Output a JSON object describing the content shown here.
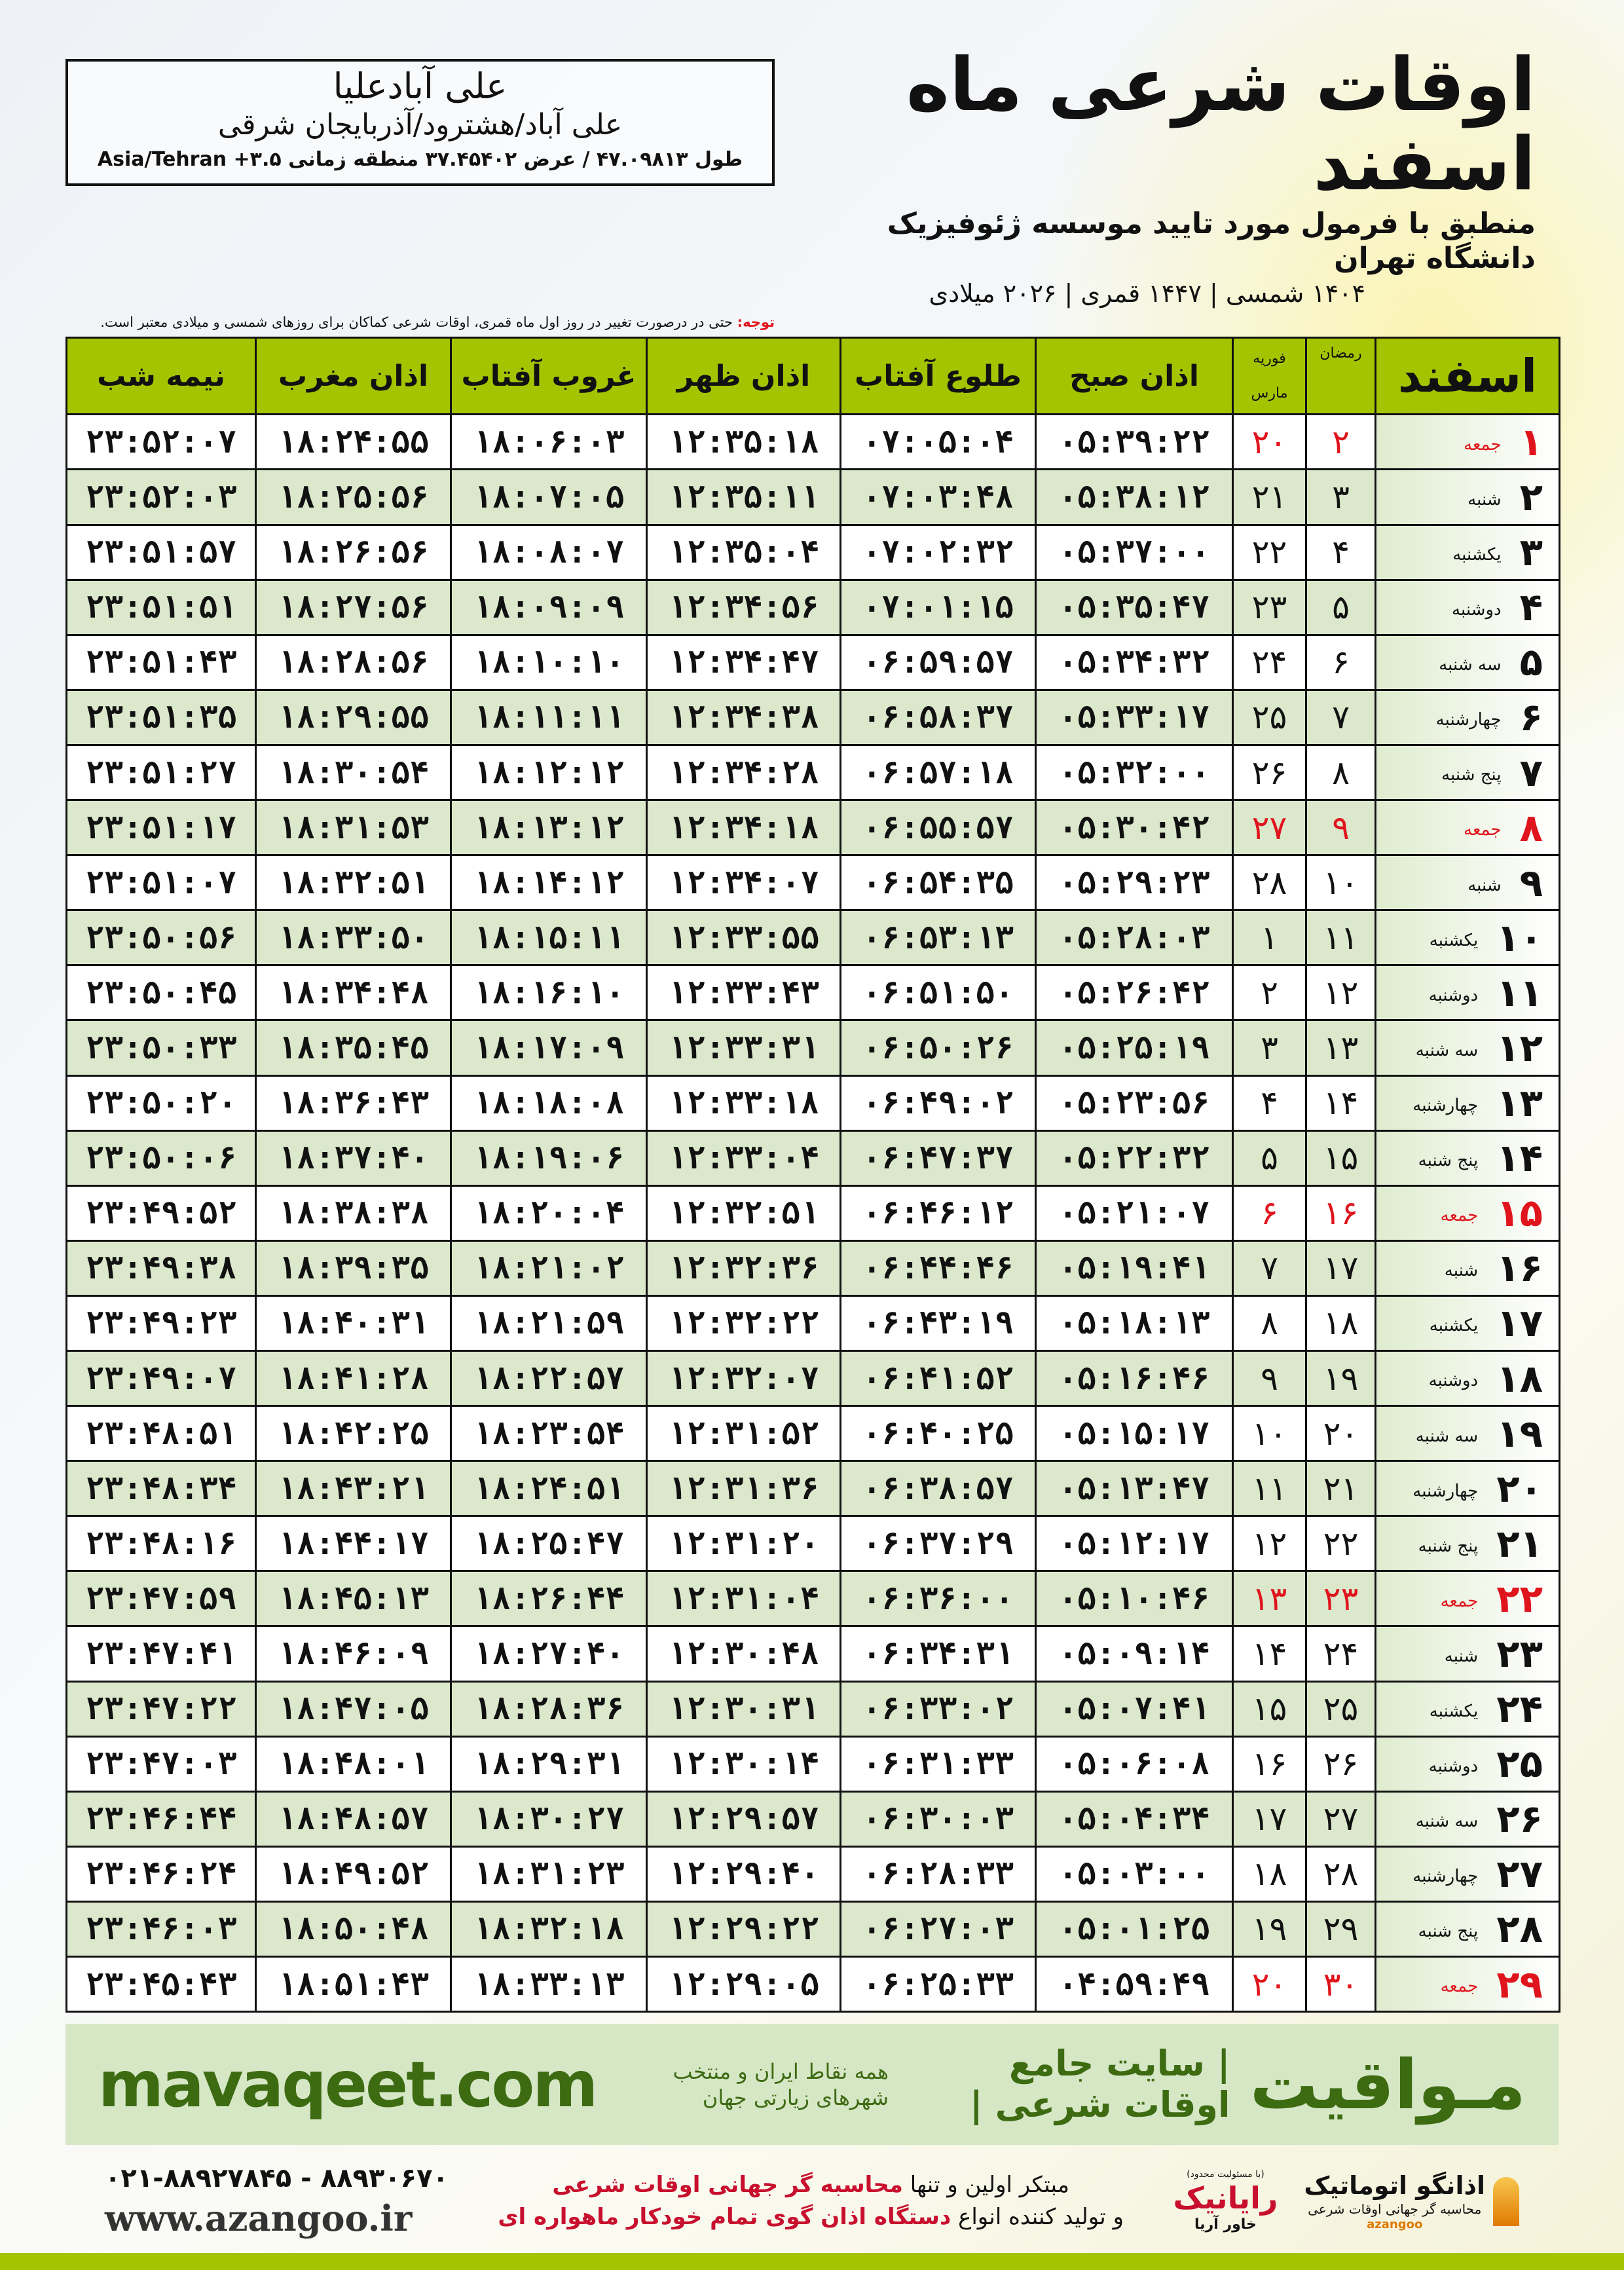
{
  "header": {
    "title": "اوقات شرعی ماه اسفند",
    "subtitle": "منطبق با فرمول مورد تایید موسسه ژئوفیزیک دانشگاه تهران",
    "dates": "۱۴۰۴ شمسی | ۱۴۴۷ قمری | ۲۰۲۶ میلادی"
  },
  "location": {
    "name": "علی آبادعلیا",
    "path": "علی آباد/هشترود/آذربایجان شرقی",
    "coords": "طول ۴۷.۰۹۸۱۳ / عرض ۳۷.۴۵۴۰۲ منطقه زمانی ۳.۵+ Asia/Tehran"
  },
  "note": {
    "label": "توجه:",
    "text": " حتی در درصورت تغییر در روز اول ماه قمری، اوقات شرعی کماکان برای روزهای شمسی و میلادی معتبر است."
  },
  "colors": {
    "header_green": "#a5c400",
    "row_alt": "#dbe8cc",
    "friday_red": "#e0141c",
    "brand_green": "#3d6b12"
  },
  "table": {
    "headers": {
      "month": "اسفند",
      "ramadan": "رمضان",
      "feb": "فوریه",
      "march": "مارس",
      "fajr": "اذان صبح",
      "sunrise": "طلوع آفتاب",
      "dhuhr": "اذان ظهر",
      "sunset": "غروب آفتاب",
      "maghrib": "اذان مغرب",
      "midnight": "نیمه شب"
    },
    "rows": [
      [
        "۱",
        "جمعه",
        "۲",
        "۲۰",
        "۰۵:۳۹:۲۲",
        "۰۷:۰۵:۰۴",
        "۱۲:۳۵:۱۸",
        "۱۸:۰۶:۰۳",
        "۱۸:۲۴:۵۵",
        "۲۳:۵۲:۰۷"
      ],
      [
        "۲",
        "شنبه",
        "۳",
        "۲۱",
        "۰۵:۳۸:۱۲",
        "۰۷:۰۳:۴۸",
        "۱۲:۳۵:۱۱",
        "۱۸:۰۷:۰۵",
        "۱۸:۲۵:۵۶",
        "۲۳:۵۲:۰۳"
      ],
      [
        "۳",
        "یکشنبه",
        "۴",
        "۲۲",
        "۰۵:۳۷:۰۰",
        "۰۷:۰۲:۳۲",
        "۱۲:۳۵:۰۴",
        "۱۸:۰۸:۰۷",
        "۱۸:۲۶:۵۶",
        "۲۳:۵۱:۵۷"
      ],
      [
        "۴",
        "دوشنبه",
        "۵",
        "۲۳",
        "۰۵:۳۵:۴۷",
        "۰۷:۰۱:۱۵",
        "۱۲:۳۴:۵۶",
        "۱۸:۰۹:۰۹",
        "۱۸:۲۷:۵۶",
        "۲۳:۵۱:۵۱"
      ],
      [
        "۵",
        "سه شنبه",
        "۶",
        "۲۴",
        "۰۵:۳۴:۳۲",
        "۰۶:۵۹:۵۷",
        "۱۲:۳۴:۴۷",
        "۱۸:۱۰:۱۰",
        "۱۸:۲۸:۵۶",
        "۲۳:۵۱:۴۳"
      ],
      [
        "۶",
        "چهارشنبه",
        "۷",
        "۲۵",
        "۰۵:۳۳:۱۷",
        "۰۶:۵۸:۳۷",
        "۱۲:۳۴:۳۸",
        "۱۸:۱۱:۱۱",
        "۱۸:۲۹:۵۵",
        "۲۳:۵۱:۳۵"
      ],
      [
        "۷",
        "پنج شنبه",
        "۸",
        "۲۶",
        "۰۵:۳۲:۰۰",
        "۰۶:۵۷:۱۸",
        "۱۲:۳۴:۲۸",
        "۱۸:۱۲:۱۲",
        "۱۸:۳۰:۵۴",
        "۲۳:۵۱:۲۷"
      ],
      [
        "۸",
        "جمعه",
        "۹",
        "۲۷",
        "۰۵:۳۰:۴۲",
        "۰۶:۵۵:۵۷",
        "۱۲:۳۴:۱۸",
        "۱۸:۱۳:۱۲",
        "۱۸:۳۱:۵۳",
        "۲۳:۵۱:۱۷"
      ],
      [
        "۹",
        "شنبه",
        "۱۰",
        "۲۸",
        "۰۵:۲۹:۲۳",
        "۰۶:۵۴:۳۵",
        "۱۲:۳۴:۰۷",
        "۱۸:۱۴:۱۲",
        "۱۸:۳۲:۵۱",
        "۲۳:۵۱:۰۷"
      ],
      [
        "۱۰",
        "یکشنبه",
        "۱۱",
        "۱",
        "۰۵:۲۸:۰۳",
        "۰۶:۵۳:۱۳",
        "۱۲:۳۳:۵۵",
        "۱۸:۱۵:۱۱",
        "۱۸:۳۳:۵۰",
        "۲۳:۵۰:۵۶"
      ],
      [
        "۱۱",
        "دوشنبه",
        "۱۲",
        "۲",
        "۰۵:۲۶:۴۲",
        "۰۶:۵۱:۵۰",
        "۱۲:۳۳:۴۳",
        "۱۸:۱۶:۱۰",
        "۱۸:۳۴:۴۸",
        "۲۳:۵۰:۴۵"
      ],
      [
        "۱۲",
        "سه شنبه",
        "۱۳",
        "۳",
        "۰۵:۲۵:۱۹",
        "۰۶:۵۰:۲۶",
        "۱۲:۳۳:۳۱",
        "۱۸:۱۷:۰۹",
        "۱۸:۳۵:۴۵",
        "۲۳:۵۰:۳۳"
      ],
      [
        "۱۳",
        "چهارشنبه",
        "۱۴",
        "۴",
        "۰۵:۲۳:۵۶",
        "۰۶:۴۹:۰۲",
        "۱۲:۳۳:۱۸",
        "۱۸:۱۸:۰۸",
        "۱۸:۳۶:۴۳",
        "۲۳:۵۰:۲۰"
      ],
      [
        "۱۴",
        "پنج شنبه",
        "۱۵",
        "۵",
        "۰۵:۲۲:۳۲",
        "۰۶:۴۷:۳۷",
        "۱۲:۳۳:۰۴",
        "۱۸:۱۹:۰۶",
        "۱۸:۳۷:۴۰",
        "۲۳:۵۰:۰۶"
      ],
      [
        "۱۵",
        "جمعه",
        "۱۶",
        "۶",
        "۰۵:۲۱:۰۷",
        "۰۶:۴۶:۱۲",
        "۱۲:۳۲:۵۱",
        "۱۸:۲۰:۰۴",
        "۱۸:۳۸:۳۸",
        "۲۳:۴۹:۵۲"
      ],
      [
        "۱۶",
        "شنبه",
        "۱۷",
        "۷",
        "۰۵:۱۹:۴۱",
        "۰۶:۴۴:۴۶",
        "۱۲:۳۲:۳۶",
        "۱۸:۲۱:۰۲",
        "۱۸:۳۹:۳۵",
        "۲۳:۴۹:۳۸"
      ],
      [
        "۱۷",
        "یکشنبه",
        "۱۸",
        "۸",
        "۰۵:۱۸:۱۳",
        "۰۶:۴۳:۱۹",
        "۱۲:۳۲:۲۲",
        "۱۸:۲۱:۵۹",
        "۱۸:۴۰:۳۱",
        "۲۳:۴۹:۲۳"
      ],
      [
        "۱۸",
        "دوشنبه",
        "۱۹",
        "۹",
        "۰۵:۱۶:۴۶",
        "۰۶:۴۱:۵۲",
        "۱۲:۳۲:۰۷",
        "۱۸:۲۲:۵۷",
        "۱۸:۴۱:۲۸",
        "۲۳:۴۹:۰۷"
      ],
      [
        "۱۹",
        "سه شنبه",
        "۲۰",
        "۱۰",
        "۰۵:۱۵:۱۷",
        "۰۶:۴۰:۲۵",
        "۱۲:۳۱:۵۲",
        "۱۸:۲۳:۵۴",
        "۱۸:۴۲:۲۵",
        "۲۳:۴۸:۵۱"
      ],
      [
        "۲۰",
        "چهارشنبه",
        "۲۱",
        "۱۱",
        "۰۵:۱۳:۴۷",
        "۰۶:۳۸:۵۷",
        "۱۲:۳۱:۳۶",
        "۱۸:۲۴:۵۱",
        "۱۸:۴۳:۲۱",
        "۲۳:۴۸:۳۴"
      ],
      [
        "۲۱",
        "پنج شنبه",
        "۲۲",
        "۱۲",
        "۰۵:۱۲:۱۷",
        "۰۶:۳۷:۲۹",
        "۱۲:۳۱:۲۰",
        "۱۸:۲۵:۴۷",
        "۱۸:۴۴:۱۷",
        "۲۳:۴۸:۱۶"
      ],
      [
        "۲۲",
        "جمعه",
        "۲۳",
        "۱۳",
        "۰۵:۱۰:۴۶",
        "۰۶:۳۶:۰۰",
        "۱۲:۳۱:۰۴",
        "۱۸:۲۶:۴۴",
        "۱۸:۴۵:۱۳",
        "۲۳:۴۷:۵۹"
      ],
      [
        "۲۳",
        "شنبه",
        "۲۴",
        "۱۴",
        "۰۵:۰۹:۱۴",
        "۰۶:۳۴:۳۱",
        "۱۲:۳۰:۴۸",
        "۱۸:۲۷:۴۰",
        "۱۸:۴۶:۰۹",
        "۲۳:۴۷:۴۱"
      ],
      [
        "۲۴",
        "یکشنبه",
        "۲۵",
        "۱۵",
        "۰۵:۰۷:۴۱",
        "۰۶:۳۳:۰۲",
        "۱۲:۳۰:۳۱",
        "۱۸:۲۸:۳۶",
        "۱۸:۴۷:۰۵",
        "۲۳:۴۷:۲۲"
      ],
      [
        "۲۵",
        "دوشنبه",
        "۲۶",
        "۱۶",
        "۰۵:۰۶:۰۸",
        "۰۶:۳۱:۳۳",
        "۱۲:۳۰:۱۴",
        "۱۸:۲۹:۳۱",
        "۱۸:۴۸:۰۱",
        "۲۳:۴۷:۰۳"
      ],
      [
        "۲۶",
        "سه شنبه",
        "۲۷",
        "۱۷",
        "۰۵:۰۴:۳۴",
        "۰۶:۳۰:۰۳",
        "۱۲:۲۹:۵۷",
        "۱۸:۳۰:۲۷",
        "۱۸:۴۸:۵۷",
        "۲۳:۴۶:۴۴"
      ],
      [
        "۲۷",
        "چهارشنبه",
        "۲۸",
        "۱۸",
        "۰۵:۰۳:۰۰",
        "۰۶:۲۸:۳۳",
        "۱۲:۲۹:۴۰",
        "۱۸:۳۱:۲۳",
        "۱۸:۴۹:۵۲",
        "۲۳:۴۶:۲۴"
      ],
      [
        "۲۸",
        "پنج شنبه",
        "۲۹",
        "۱۹",
        "۰۵:۰۱:۲۵",
        "۰۶:۲۷:۰۳",
        "۱۲:۲۹:۲۲",
        "۱۸:۳۲:۱۸",
        "۱۸:۵۰:۴۸",
        "۲۳:۴۶:۰۳"
      ],
      [
        "۲۹",
        "جمعه",
        "۳۰",
        "۲۰",
        "۰۴:۵۹:۴۹",
        "۰۶:۲۵:۳۳",
        "۱۲:۲۹:۰۵",
        "۱۸:۳۳:۱۳",
        "۱۸:۵۱:۴۳",
        "۲۳:۴۵:۴۳"
      ]
    ],
    "friday_label": "جمعه"
  },
  "band": {
    "site": "mavaqeet.com",
    "brand": "مـواقیت",
    "slogan": "| سایت جامع اوقات شرعی |",
    "sub": "همه نقاط ایران و منتخب شهرهای زیارتی جهان"
  },
  "footer": {
    "phone": "۰۲۱-۸۸۹۲۷۸۴۵ - ۸۸۹۳۰۶۷۰",
    "www": "www.azangoo.ir",
    "promo1_a": "مبتکر اولین و تنها ",
    "promo1_b": "محاسبه گر جهانی اوقات شرعی",
    "promo2_a": "و تولید کننده انواع ",
    "promo2_b": "دستگاه اذان گوی تمام خودکار ماهواره ای",
    "logo2_small": "(با مسئولیت محدود)",
    "logo2_name": "رایانیک",
    "logo2_sub": "خاور آریا",
    "logo1_name": "اذانگو اتوماتیک",
    "logo1_sub": "محاسبه گر جهانی اوقات شرعی",
    "logo1_latin": "azangoo"
  }
}
